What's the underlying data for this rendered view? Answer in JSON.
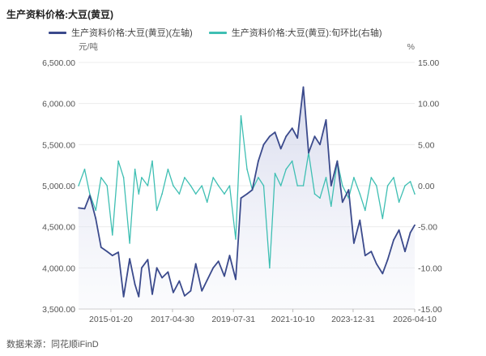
{
  "title": "生产资料价格:大豆(黄豆)",
  "source": "数据来源：同花顺iFinD",
  "chart_data": {
    "type": "line",
    "left_unit": "元/吨",
    "right_unit": "%",
    "left_ylim": [
      3500,
      6500
    ],
    "right_ylim": [
      -15,
      15
    ],
    "left_ticks": [
      "6,500.00",
      "6,000.00",
      "5,500.00",
      "5,000.00",
      "4,500.00",
      "4,000.00",
      "3,500.00"
    ],
    "right_ticks": [
      "15.00",
      "10.00",
      "5.00",
      "0.00",
      "-5.00",
      "-10.00",
      "-15.00"
    ],
    "x_ticks": [
      "2015-01-20",
      "2017-04-30",
      "2019-07-31",
      "2021-10-10",
      "2023-12-31",
      "2026-04-10"
    ],
    "series": [
      {
        "name": "生产资料价格:大豆(黄豆)(左轴)",
        "axis": "left",
        "color": "#3b4a8c",
        "x": [
          "2013-11-10",
          "2014-01-31",
          "2014-04-10",
          "2014-06-30",
          "2014-09-10",
          "2014-11-30",
          "2015-02-10",
          "2015-04-30",
          "2015-07-10",
          "2015-09-30",
          "2015-12-10",
          "2016-01-31",
          "2016-03-10",
          "2016-05-31",
          "2016-07-31",
          "2016-09-30",
          "2016-12-10",
          "2017-02-28",
          "2017-05-10",
          "2017-07-31",
          "2017-10-10",
          "2017-12-31",
          "2018-03-10",
          "2018-05-31",
          "2018-08-10",
          "2018-10-31",
          "2019-01-10",
          "2019-03-31",
          "2019-06-10",
          "2019-08-31",
          "2019-11-10",
          "2020-01-31",
          "2020-04-10",
          "2020-06-30",
          "2020-09-10",
          "2020-11-30",
          "2021-02-10",
          "2021-04-30",
          "2021-07-10",
          "2021-09-30",
          "2021-12-10",
          "2022-02-28",
          "2022-05-10",
          "2022-07-31",
          "2022-10-10",
          "2022-12-31",
          "2023-03-10",
          "2023-05-31",
          "2023-08-10",
          "2023-10-31",
          "2024-01-10",
          "2024-03-31",
          "2024-06-10",
          "2024-08-31",
          "2024-11-10",
          "2025-01-31",
          "2025-04-10",
          "2025-06-30",
          "2025-09-10",
          "2025-11-30",
          "2026-02-10",
          "2026-04-10"
        ],
        "values": [
          4730,
          4720,
          4880,
          4600,
          4250,
          4200,
          4150,
          4190,
          3650,
          4110,
          3800,
          3650,
          4000,
          4100,
          3680,
          4000,
          3880,
          3950,
          3700,
          3840,
          3660,
          3720,
          4050,
          3720,
          3850,
          4000,
          4080,
          3900,
          4150,
          3860,
          4850,
          4900,
          4950,
          5300,
          5500,
          5600,
          5650,
          5450,
          5600,
          5700,
          5580,
          6200,
          5400,
          5600,
          5500,
          5800,
          5000,
          5300,
          4800,
          4950,
          4300,
          4580,
          4150,
          4200,
          4050,
          3930,
          4100,
          4340,
          4460,
          4200,
          4430,
          4520
        ]
      },
      {
        "name": "生产资料价格:大豆(黄豆):旬环比(右轴)",
        "axis": "right",
        "color": "#3fbfb3",
        "x": [
          "2013-11-10",
          "2014-01-31",
          "2014-04-10",
          "2014-06-30",
          "2014-09-10",
          "2014-11-30",
          "2015-02-10",
          "2015-04-30",
          "2015-07-10",
          "2015-09-30",
          "2015-12-10",
          "2016-01-31",
          "2016-03-10",
          "2016-05-31",
          "2016-07-31",
          "2016-09-30",
          "2016-12-10",
          "2017-02-28",
          "2017-05-10",
          "2017-07-31",
          "2017-10-10",
          "2017-12-31",
          "2018-03-10",
          "2018-05-31",
          "2018-08-10",
          "2018-10-31",
          "2019-01-10",
          "2019-03-31",
          "2019-06-10",
          "2019-08-31",
          "2019-11-10",
          "2020-01-31",
          "2020-04-10",
          "2020-06-30",
          "2020-09-10",
          "2020-11-30",
          "2021-02-10",
          "2021-04-30",
          "2021-07-10",
          "2021-09-30",
          "2021-12-10",
          "2022-02-28",
          "2022-05-10",
          "2022-07-31",
          "2022-10-10",
          "2022-12-31",
          "2023-03-10",
          "2023-05-31",
          "2023-08-10",
          "2023-10-31",
          "2024-01-10",
          "2024-03-31",
          "2024-06-10",
          "2024-08-31",
          "2024-11-10",
          "2025-01-31",
          "2025-04-10",
          "2025-06-30",
          "2025-09-10",
          "2025-11-30",
          "2026-02-10",
          "2026-04-10"
        ],
        "values": [
          0,
          2,
          -1,
          -3,
          1,
          0,
          -6,
          3,
          1,
          -7,
          2,
          -1,
          1,
          0,
          3,
          -3,
          -1,
          2,
          0,
          -1,
          1,
          0,
          -1,
          0,
          -2,
          1,
          0,
          -1,
          0,
          -6.5,
          8.5,
          2,
          -0.5,
          1,
          0,
          -10,
          1.5,
          0,
          2,
          3,
          0,
          0,
          4,
          -1,
          -1.5,
          1,
          -2.5,
          3,
          0,
          -1.5,
          1,
          -1,
          -3,
          1,
          0,
          -4,
          0,
          1,
          -2,
          0,
          0.5,
          -1
        ]
      }
    ]
  }
}
